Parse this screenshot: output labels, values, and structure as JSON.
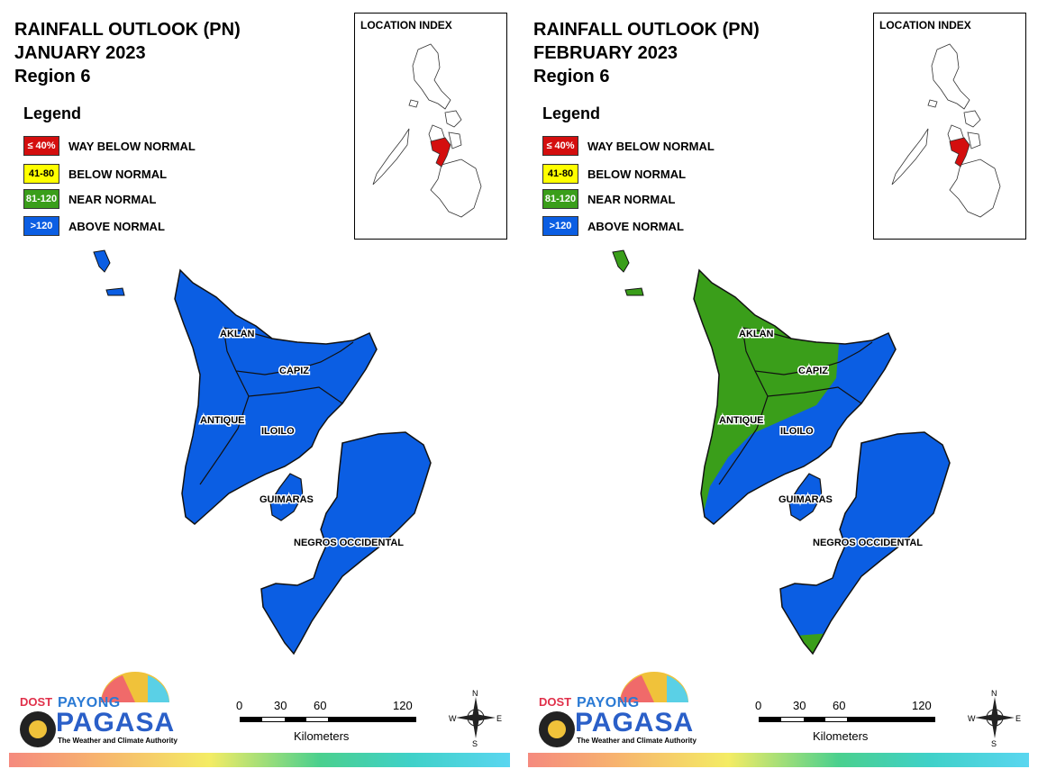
{
  "colors": {
    "way_below": "#d40e0e",
    "below": "#ffff00",
    "near": "#3a9e1a",
    "above": "#0b5ee3"
  },
  "panels": [
    {
      "title_line1": "RAINFALL OUTLOOK (PN)",
      "title_line2": "JANUARY 2023",
      "title_line3": "Region 6",
      "legend_title": "Legend",
      "legend": [
        {
          "swatch": "≤ 40%",
          "label": "WAY BELOW NORMAL"
        },
        {
          "swatch": "41-80",
          "label": "BELOW NORMAL"
        },
        {
          "swatch": "81-120",
          "label": "NEAR NORMAL"
        },
        {
          "swatch": ">120",
          "label": "ABOVE NORMAL"
        }
      ],
      "location_index_title": "LOCATION INDEX",
      "provinces": {
        "aklan": "AKLAN",
        "capiz": "CAPIZ",
        "antique": "ANTIQUE",
        "iloilo": "ILOILO",
        "guimaras": "GUIMARAS",
        "negros": "NEGROS OCCIDENTAL"
      },
      "scale": {
        "t0": "0",
        "t1": "30",
        "t2": "60",
        "t3": "120",
        "unit": "Kilometers"
      },
      "compass": {
        "n": "N",
        "s": "S",
        "e": "E",
        "w": "W"
      },
      "logo": {
        "dost": "DOST",
        "payong": "PAYONG",
        "pagasa": "PAGASA",
        "tagline": "The Weather and Climate Authority"
      }
    },
    {
      "title_line1": "RAINFALL OUTLOOK (PN)",
      "title_line2": "FEBRUARY 2023",
      "title_line3": "Region 6",
      "legend_title": "Legend",
      "legend": [
        {
          "swatch": "≤ 40%",
          "label": "WAY BELOW NORMAL"
        },
        {
          "swatch": "41-80",
          "label": "BELOW NORMAL"
        },
        {
          "swatch": "81-120",
          "label": "NEAR NORMAL"
        },
        {
          "swatch": ">120",
          "label": "ABOVE NORMAL"
        }
      ],
      "location_index_title": "LOCATION INDEX",
      "provinces": {
        "aklan": "AKLAN",
        "capiz": "CAPIZ",
        "antique": "ANTIQUE",
        "iloilo": "ILOILO",
        "guimaras": "GUIMARAS",
        "negros": "NEGROS OCCIDENTAL"
      },
      "scale": {
        "t0": "0",
        "t1": "30",
        "t2": "60",
        "t3": "120",
        "unit": "Kilometers"
      },
      "compass": {
        "n": "N",
        "s": "S",
        "e": "E",
        "w": "W"
      },
      "logo": {
        "dost": "DOST",
        "payong": "PAYONG",
        "pagasa": "PAGASA",
        "tagline": "The Weather and Climate Authority"
      }
    }
  ]
}
